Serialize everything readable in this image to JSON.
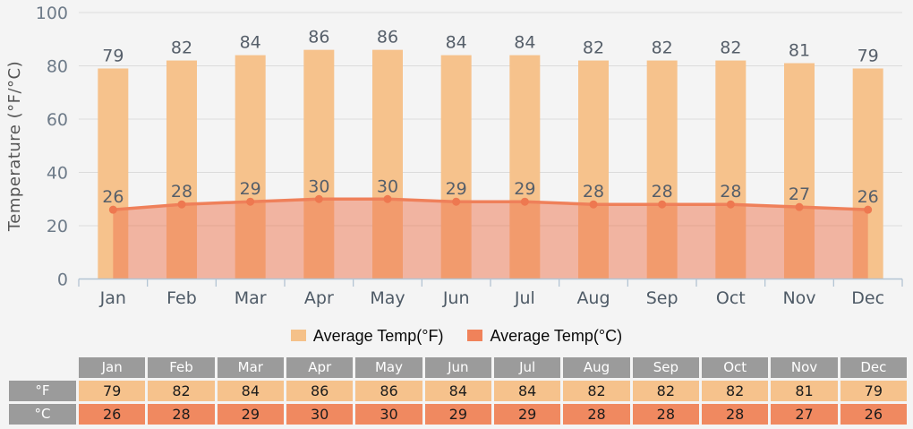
{
  "chart_data": {
    "type": "combo",
    "categories": [
      "Jan",
      "Feb",
      "Mar",
      "Apr",
      "May",
      "Jun",
      "Jul",
      "Aug",
      "Sep",
      "Oct",
      "Nov",
      "Dec"
    ],
    "series": [
      {
        "name": "Average Temp(°F)",
        "type": "bar",
        "values": [
          79,
          82,
          84,
          86,
          86,
          84,
          84,
          82,
          82,
          82,
          81,
          79
        ]
      },
      {
        "name": "Average Temp(°C)",
        "type": "area",
        "values": [
          26,
          28,
          29,
          30,
          30,
          29,
          29,
          28,
          28,
          28,
          27,
          26
        ]
      }
    ],
    "title": "",
    "xlabel": "",
    "ylabel": "Temperature (°F/°C)",
    "ylim": [
      0,
      100
    ],
    "yticks": [
      0,
      20,
      40,
      60,
      80,
      100
    ],
    "grid": true,
    "legend_position": "bottom"
  },
  "legend": {
    "items": [
      {
        "id": "avg-temp-f",
        "label": "Average Temp(°F)"
      },
      {
        "id": "avg-temp-c",
        "label": "Average Temp(°C)"
      }
    ]
  },
  "table": {
    "corner": "",
    "columns": [
      "Jan",
      "Feb",
      "Mar",
      "Apr",
      "May",
      "Jun",
      "Jul",
      "Aug",
      "Sep",
      "Oct",
      "Nov",
      "Dec"
    ],
    "rows": [
      {
        "label": "°F",
        "values": [
          79,
          82,
          84,
          86,
          86,
          84,
          84,
          82,
          82,
          82,
          81,
          79
        ]
      },
      {
        "label": "°C",
        "values": [
          26,
          28,
          29,
          30,
          30,
          29,
          29,
          28,
          28,
          28,
          27,
          26
        ]
      }
    ]
  },
  "colors": {
    "background": "#F4F4F4",
    "gridline": "#DBDBDB",
    "axis": "#B3C4D3",
    "bar": "#F6C28C",
    "line": "#EF805A",
    "marker": "#EE7850",
    "area_fill": "rgba(238,116,78,0.5)",
    "bar_label": "#565F6A",
    "tick_label": "#6E7B89",
    "month_label": "#4E5A66",
    "axis_title": "#555555",
    "legend_swatch_f": "#F5C189",
    "legend_swatch_c": "#F0825A",
    "table_header_bg": "#9B9B9B",
    "table_f_bg": "#F6C28C",
    "table_c_bg": "#F08960"
  }
}
